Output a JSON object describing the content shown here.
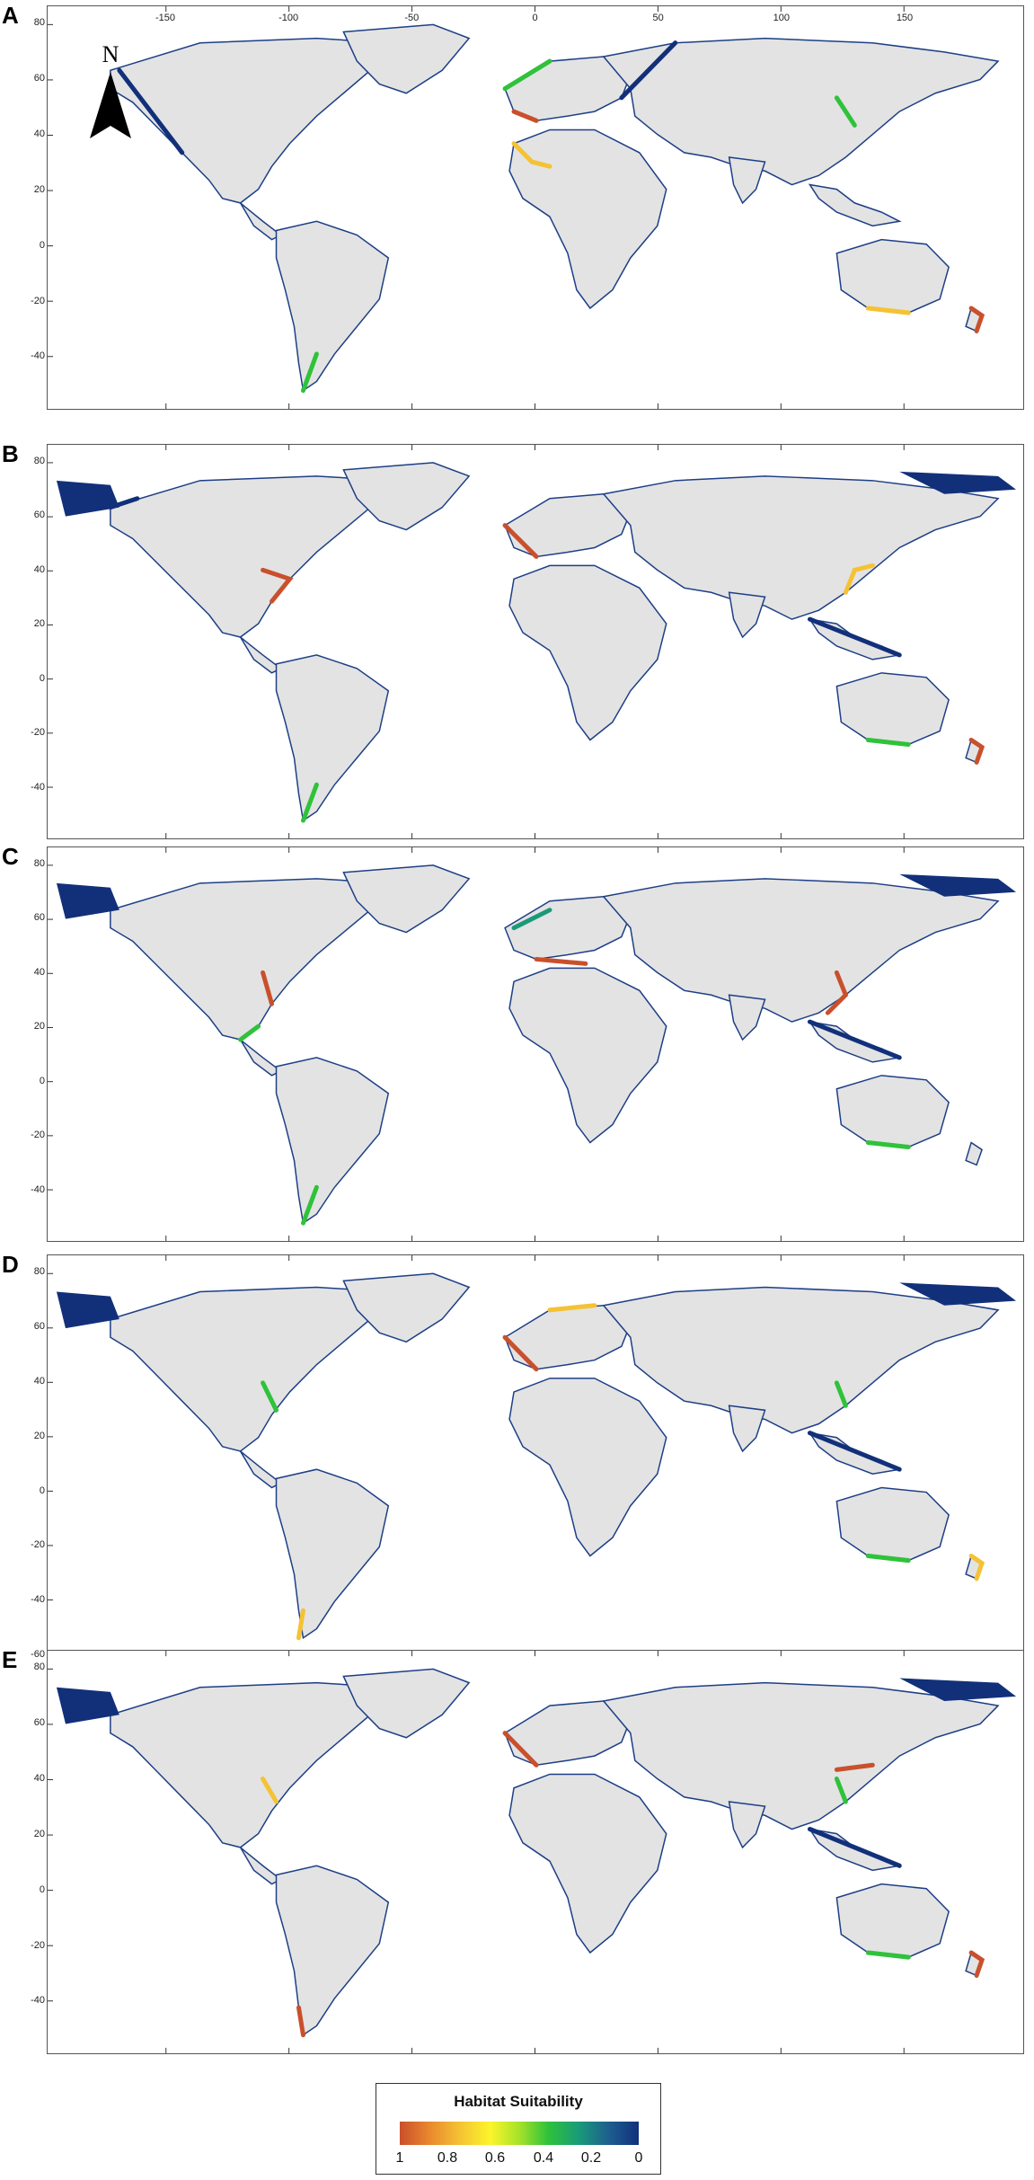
{
  "north_label": "N",
  "lon_ticks": [
    "-150",
    "-100",
    "-50",
    "0",
    "50",
    "100",
    "150"
  ],
  "panels": [
    {
      "letter": "A",
      "lat_ticks": [
        "80",
        "60",
        "40",
        "20",
        "0",
        "-20",
        "-40"
      ]
    },
    {
      "letter": "B",
      "lat_ticks": [
        "80",
        "60",
        "40",
        "20",
        "0",
        "-20",
        "-40"
      ]
    },
    {
      "letter": "C",
      "lat_ticks": [
        "80",
        "60",
        "40",
        "20",
        "0",
        "-20",
        "-40"
      ]
    },
    {
      "letter": "D",
      "lat_ticks": [
        "80",
        "60",
        "40",
        "20",
        "0",
        "-20",
        "-40",
        "-60"
      ]
    },
    {
      "letter": "E",
      "lat_ticks": [
        "80",
        "60",
        "40",
        "20",
        "0",
        "-20",
        "-40"
      ]
    }
  ],
  "legend": {
    "title": "Habitat Suitability",
    "ticks": [
      "1",
      "0.8",
      "0.6",
      "0.4",
      "0.2",
      "0"
    ]
  },
  "colors": {
    "land": "#e3e3e3",
    "high": "#c9502c",
    "mid_high": "#f5c233",
    "mid": "#fbf52b",
    "mid_low": "#2fc23a",
    "low": "#12307a"
  }
}
